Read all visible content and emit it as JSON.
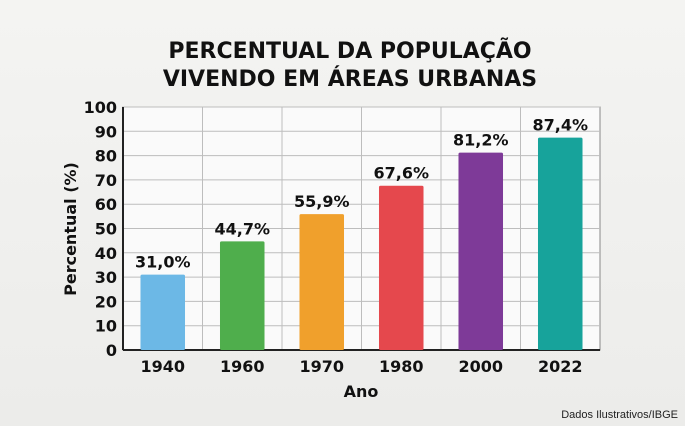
{
  "chart_data": {
    "type": "bar",
    "title_lines": [
      "PERCENTUAL DA POPULAÇÃO",
      "VIVENDO EM ÁREAS URBANAS"
    ],
    "categories": [
      "1940",
      "1960",
      "1970",
      "1980",
      "2000",
      "2022"
    ],
    "values": [
      31.0,
      44.7,
      55.9,
      67.6,
      81.2,
      87.4
    ],
    "data_labels": [
      "31,0%",
      "44,7%",
      "55,9%",
      "67,6%",
      "81,2%",
      "87,4%"
    ],
    "colors": [
      "#6cb8e6",
      "#4fae4c",
      "#f0a02c",
      "#e5484d",
      "#7e3a98",
      "#17a39b"
    ],
    "xlabel": "Ano",
    "ylabel": "Percentual (%)",
    "ylim": [
      0,
      100
    ],
    "yticks": [
      "0",
      "10",
      "20",
      "30",
      "40",
      "50",
      "60",
      "70",
      "80",
      "90",
      "100"
    ],
    "grid": true
  },
  "source": "Dados Ilustrativos/IBGE"
}
